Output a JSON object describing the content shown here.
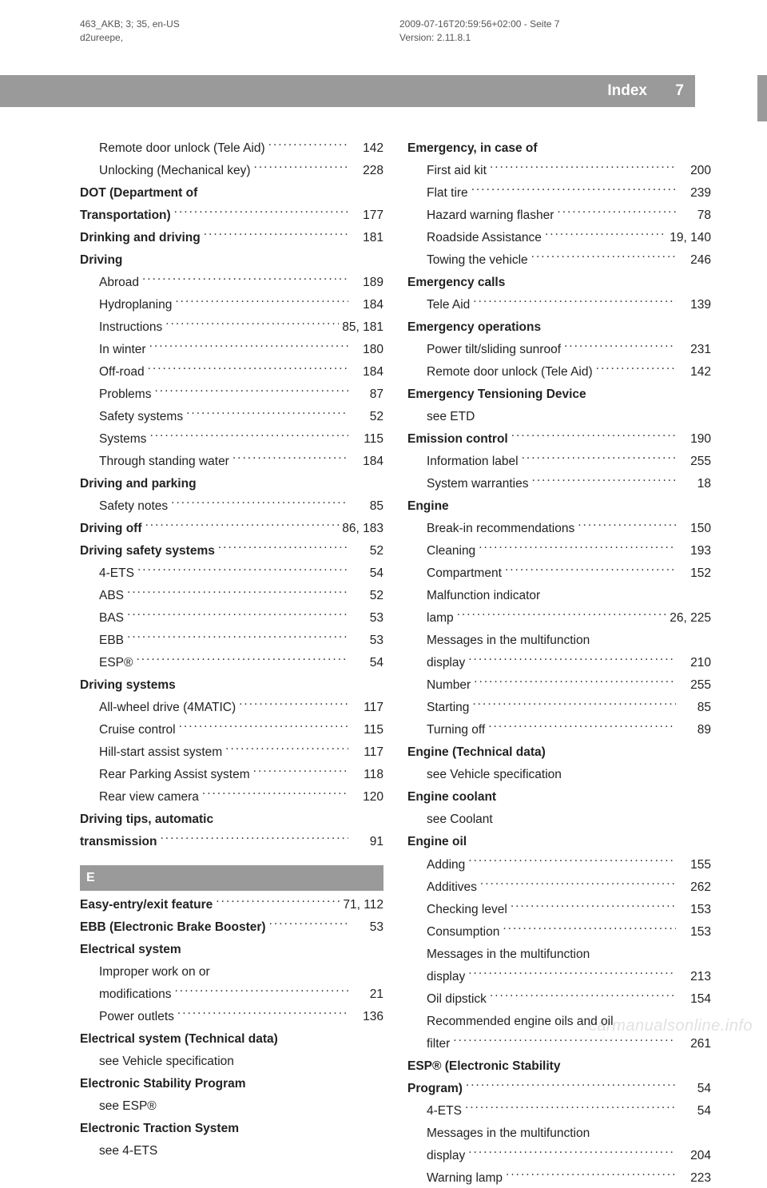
{
  "meta": {
    "left_line1": "463_AKB; 3; 35, en-US",
    "left_line2": "d2ureepe,",
    "right_line1": "2009-07-16T20:59:56+02:00 - Seite 7",
    "right_line2": "Version: 2.11.8.1"
  },
  "header": {
    "title": "Index",
    "page": "7"
  },
  "watermark": "carmanualsonline.info",
  "colors": {
    "bar": "#9a9a9a",
    "text": "#222222",
    "meta": "#555555",
    "bg": "#ffffff"
  },
  "col1": [
    {
      "label": "Remote door unlock (Tele Aid)",
      "page": "142",
      "indent": true
    },
    {
      "label": "Unlocking (Mechanical key)",
      "page": "228",
      "indent": true
    },
    {
      "label": "DOT (Department of",
      "bold": true,
      "nopg": true
    },
    {
      "label": "Transportation)",
      "page": "177",
      "bold": true
    },
    {
      "label": "Drinking and driving",
      "page": "181",
      "bold": true
    },
    {
      "label": "Driving",
      "bold": true,
      "nopg": true
    },
    {
      "label": "Abroad",
      "page": "189",
      "indent": true
    },
    {
      "label": "Hydroplaning",
      "page": "184",
      "indent": true
    },
    {
      "label": "Instructions",
      "page": "85, 181",
      "indent": true
    },
    {
      "label": "In winter",
      "page": "180",
      "indent": true
    },
    {
      "label": "Off-road",
      "page": "184",
      "indent": true
    },
    {
      "label": "Problems",
      "page": "87",
      "indent": true
    },
    {
      "label": "Safety systems",
      "page": "52",
      "indent": true
    },
    {
      "label": "Systems",
      "page": "115",
      "indent": true
    },
    {
      "label": "Through standing water",
      "page": "184",
      "indent": true
    },
    {
      "label": "Driving and parking",
      "bold": true,
      "nopg": true
    },
    {
      "label": "Safety notes",
      "page": "85",
      "indent": true
    },
    {
      "label": "Driving off",
      "page": "86, 183",
      "bold": true
    },
    {
      "label": "Driving safety systems",
      "page": "52",
      "bold": true
    },
    {
      "label": "4-ETS",
      "page": "54",
      "indent": true
    },
    {
      "label": "ABS",
      "page": "52",
      "indent": true
    },
    {
      "label": "BAS",
      "page": "53",
      "indent": true
    },
    {
      "label": "EBB",
      "page": "53",
      "indent": true
    },
    {
      "label": "ESP®",
      "page": "54",
      "indent": true
    },
    {
      "label": "Driving systems",
      "bold": true,
      "nopg": true
    },
    {
      "label": "All-wheel drive (4MATIC)",
      "page": "117",
      "indent": true
    },
    {
      "label": "Cruise control",
      "page": "115",
      "indent": true
    },
    {
      "label": "Hill-start assist system",
      "page": "117",
      "indent": true
    },
    {
      "label": "Rear Parking Assist system",
      "page": "118",
      "indent": true
    },
    {
      "label": "Rear view camera",
      "page": "120",
      "indent": true
    },
    {
      "label": "Driving tips, automatic",
      "bold": true,
      "nopg": true
    },
    {
      "label": "transmission",
      "page": "91",
      "bold": true
    },
    {
      "letter": "E"
    },
    {
      "label": "Easy-entry/exit feature",
      "page": "71, 112",
      "bold": true
    },
    {
      "label": "EBB (Electronic Brake Booster)",
      "page": "53",
      "bold": true
    },
    {
      "label": "Electrical system",
      "bold": true,
      "nopg": true
    },
    {
      "label": "Improper work on or",
      "indent": true,
      "nopg": true
    },
    {
      "label": "modifications",
      "page": "21",
      "indent": true
    },
    {
      "label": "Power outlets",
      "page": "136",
      "indent": true
    },
    {
      "label": "Electrical system (Technical data)",
      "bold": true,
      "nopg": true
    },
    {
      "label": "see Vehicle specification",
      "indent": true,
      "nopg": true
    },
    {
      "label": "Electronic Stability Program",
      "bold": true,
      "nopg": true
    },
    {
      "label": "see ESP®",
      "indent": true,
      "nopg": true
    },
    {
      "label": "Electronic Traction System",
      "bold": true,
      "nopg": true
    },
    {
      "label": "see 4-ETS",
      "indent": true,
      "nopg": true
    }
  ],
  "col2": [
    {
      "label": "Emergency, in case of",
      "bold": true,
      "nopg": true
    },
    {
      "label": "First aid kit",
      "page": "200",
      "indent": true
    },
    {
      "label": "Flat tire",
      "page": "239",
      "indent": true
    },
    {
      "label": "Hazard warning flasher",
      "page": "78",
      "indent": true
    },
    {
      "label": "Roadside Assistance",
      "page": "19, 140",
      "indent": true
    },
    {
      "label": "Towing the vehicle",
      "page": "246",
      "indent": true
    },
    {
      "label": "Emergency calls",
      "bold": true,
      "nopg": true
    },
    {
      "label": "Tele Aid",
      "page": "139",
      "indent": true
    },
    {
      "label": "Emergency operations",
      "bold": true,
      "nopg": true
    },
    {
      "label": "Power tilt/sliding sunroof",
      "page": "231",
      "indent": true
    },
    {
      "label": "Remote door unlock (Tele Aid)",
      "page": "142",
      "indent": true
    },
    {
      "label": "Emergency Tensioning Device",
      "bold": true,
      "nopg": true
    },
    {
      "label": "see ETD",
      "indent": true,
      "nopg": true
    },
    {
      "label": "Emission control",
      "page": "190",
      "bold": true
    },
    {
      "label": "Information label",
      "page": "255",
      "indent": true
    },
    {
      "label": "System warranties",
      "page": "18",
      "indent": true
    },
    {
      "label": "Engine",
      "bold": true,
      "nopg": true
    },
    {
      "label": "Break-in recommendations",
      "page": "150",
      "indent": true
    },
    {
      "label": "Cleaning",
      "page": "193",
      "indent": true
    },
    {
      "label": "Compartment",
      "page": "152",
      "indent": true
    },
    {
      "label": "Malfunction indicator",
      "indent": true,
      "nopg": true
    },
    {
      "label": "lamp",
      "page": "26, 225",
      "indent": true
    },
    {
      "label": "Messages in the multifunction",
      "indent": true,
      "nopg": true
    },
    {
      "label": "display",
      "page": "210",
      "indent": true
    },
    {
      "label": "Number",
      "page": "255",
      "indent": true
    },
    {
      "label": "Starting",
      "page": "85",
      "indent": true
    },
    {
      "label": "Turning off",
      "page": "89",
      "indent": true
    },
    {
      "label": "Engine (Technical data)",
      "bold": true,
      "nopg": true
    },
    {
      "label": "see Vehicle specification",
      "indent": true,
      "nopg": true
    },
    {
      "label": "Engine coolant",
      "bold": true,
      "nopg": true
    },
    {
      "label": "see Coolant",
      "indent": true,
      "nopg": true
    },
    {
      "label": "Engine oil",
      "bold": true,
      "nopg": true
    },
    {
      "label": "Adding",
      "page": "155",
      "indent": true
    },
    {
      "label": "Additives",
      "page": "262",
      "indent": true
    },
    {
      "label": "Checking level",
      "page": "153",
      "indent": true
    },
    {
      "label": "Consumption",
      "page": "153",
      "indent": true
    },
    {
      "label": "Messages in the multifunction",
      "indent": true,
      "nopg": true
    },
    {
      "label": "display",
      "page": "213",
      "indent": true
    },
    {
      "label": "Oil dipstick",
      "page": "154",
      "indent": true
    },
    {
      "label": "Recommended engine oils and oil",
      "indent": true,
      "nopg": true
    },
    {
      "label": "filter",
      "page": "261",
      "indent": true
    },
    {
      "label": "ESP® (Electronic Stability",
      "bold": true,
      "nopg": true
    },
    {
      "label": "Program)",
      "page": "54",
      "bold": true
    },
    {
      "label": "4-ETS",
      "page": "54",
      "indent": true
    },
    {
      "label": "Messages in the multifunction",
      "indent": true,
      "nopg": true
    },
    {
      "label": "display",
      "page": "204",
      "indent": true
    },
    {
      "label": "Warning lamp",
      "page": "223",
      "indent": true
    }
  ]
}
